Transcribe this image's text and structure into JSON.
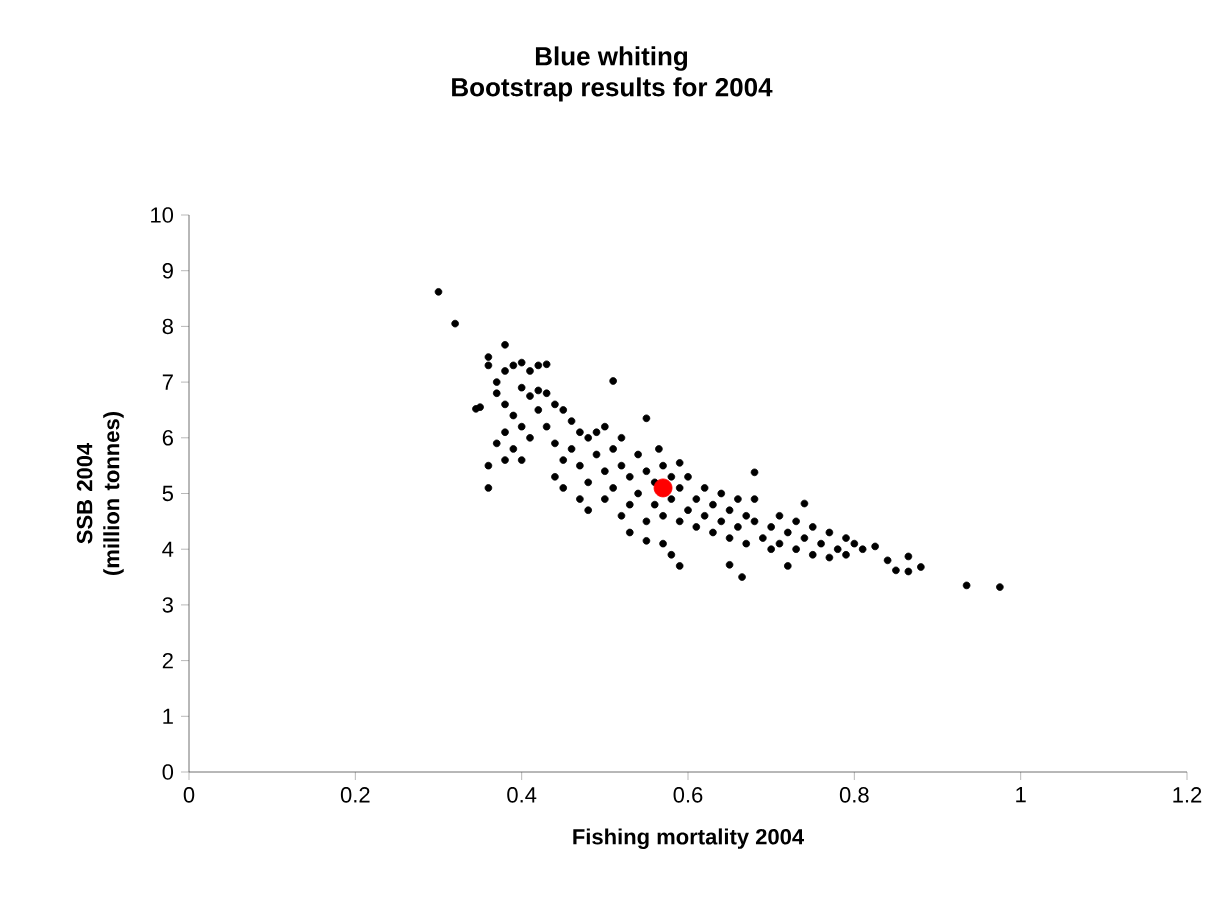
{
  "chart_data": {
    "type": "scatter",
    "title": "Blue whiting",
    "subtitle": "Bootstrap results for 2004",
    "xlabel": "Fishing mortality 2004",
    "ylabel": "SSB 2004 (million tonnes)",
    "xlim": [
      0,
      1.2
    ],
    "xticks": [
      0,
      0.2,
      0.4,
      0.6,
      0.8,
      1,
      1.2
    ],
    "ylim": [
      0,
      10
    ],
    "yticks": [
      0,
      1,
      2,
      3,
      4,
      5,
      6,
      7,
      8,
      9,
      10
    ],
    "grid": false,
    "series": [
      {
        "color": "#000000",
        "x": [
          0.3,
          0.32,
          0.38,
          0.36,
          0.36,
          0.35,
          0.345,
          0.36,
          0.36,
          0.51,
          0.55,
          0.935,
          0.975,
          0.665,
          0.88,
          0.865,
          0.865,
          0.85,
          0.84,
          0.825,
          0.81,
          0.79,
          0.74,
          0.68,
          0.72,
          0.65,
          0.58,
          0.59,
          0.565,
          0.59,
          0.37,
          0.38,
          0.39,
          0.4,
          0.41,
          0.42,
          0.43,
          0.37,
          0.38,
          0.39,
          0.4,
          0.41,
          0.42,
          0.38,
          0.37,
          0.39,
          0.4,
          0.41,
          0.42,
          0.4,
          0.38,
          0.43,
          0.44,
          0.43,
          0.44,
          0.45,
          0.46,
          0.45,
          0.44,
          0.46,
          0.47,
          0.47,
          0.48,
          0.48,
          0.49,
          0.49,
          0.5,
          0.5,
          0.5,
          0.51,
          0.51,
          0.52,
          0.52,
          0.52,
          0.53,
          0.53,
          0.54,
          0.54,
          0.55,
          0.55,
          0.55,
          0.56,
          0.56,
          0.57,
          0.57,
          0.58,
          0.58,
          0.59,
          0.59,
          0.6,
          0.6,
          0.61,
          0.61,
          0.62,
          0.62,
          0.63,
          0.63,
          0.64,
          0.64,
          0.65,
          0.65,
          0.66,
          0.66,
          0.67,
          0.67,
          0.68,
          0.68,
          0.69,
          0.7,
          0.7,
          0.71,
          0.71,
          0.72,
          0.73,
          0.73,
          0.74,
          0.75,
          0.75,
          0.76,
          0.77,
          0.77,
          0.78,
          0.79,
          0.8,
          0.48,
          0.47,
          0.45,
          0.53,
          0.57
        ],
        "values": [
          8.62,
          8.05,
          7.67,
          7.45,
          7.3,
          6.55,
          6.52,
          5.5,
          5.1,
          7.02,
          6.35,
          3.35,
          3.32,
          3.5,
          3.68,
          3.6,
          3.87,
          3.62,
          3.8,
          4.05,
          4.0,
          4.2,
          4.82,
          5.38,
          3.7,
          3.72,
          3.9,
          3.7,
          5.8,
          5.55,
          7.0,
          7.2,
          7.3,
          7.35,
          7.2,
          7.3,
          7.32,
          6.8,
          6.6,
          6.4,
          6.9,
          6.75,
          6.85,
          6.1,
          5.9,
          5.8,
          6.2,
          6.0,
          6.5,
          5.6,
          5.6,
          6.8,
          6.6,
          6.2,
          5.9,
          6.5,
          6.3,
          5.6,
          5.3,
          5.8,
          6.1,
          5.5,
          6.0,
          5.2,
          5.7,
          6.1,
          5.4,
          4.9,
          6.2,
          5.8,
          5.1,
          5.5,
          6.0,
          4.6,
          5.3,
          4.8,
          5.7,
          5.0,
          5.4,
          4.5,
          4.15,
          5.2,
          4.8,
          5.5,
          4.6,
          5.3,
          4.9,
          5.1,
          4.5,
          5.3,
          4.7,
          4.9,
          4.4,
          5.1,
          4.6,
          4.8,
          4.3,
          5.0,
          4.5,
          4.7,
          4.2,
          4.9,
          4.4,
          4.6,
          4.1,
          4.5,
          4.9,
          4.2,
          4.4,
          4.0,
          4.6,
          4.1,
          4.3,
          4.0,
          4.5,
          4.2,
          4.4,
          3.9,
          4.1,
          4.3,
          3.85,
          4.0,
          3.9,
          4.1,
          4.7,
          4.9,
          5.1,
          4.3,
          4.1
        ]
      },
      {
        "color": "#ff0000",
        "x": [
          0.57
        ],
        "values": [
          5.1
        ]
      }
    ]
  }
}
